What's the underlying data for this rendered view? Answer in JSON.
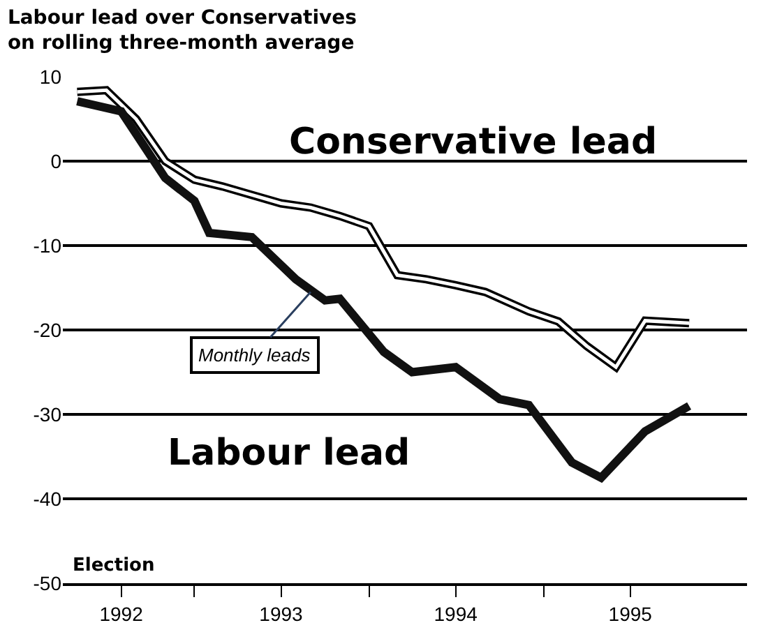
{
  "chart_data": {
    "type": "line",
    "title": "Labour lead over Conservatives\non rolling three-month average",
    "series": [
      {
        "color": "#ffffff",
        "x": [
          "1992-05",
          "1992-07",
          "1992-09",
          "1992-11",
          "1993-01",
          "1993-03",
          "1993-05",
          "1993-07",
          "1993-09",
          "1993-11",
          "1994-01",
          "1994-03",
          "1994-05",
          "1994-07",
          "1994-09",
          "1994-12",
          "1995-02",
          "1995-04",
          "1995-06",
          "1995-08",
          "1995-11"
        ],
        "values": [
          8.2,
          8.4,
          5,
          0,
          -2.2,
          -3,
          -4,
          -5,
          -5.5,
          -6.5,
          -7.7,
          -13.5,
          -14,
          -14.7,
          -15.5,
          -17.8,
          -19,
          -21.9,
          -24.4,
          -18.9,
          -19.2
        ]
      },
      {
        "color": "#111111",
        "x": [
          "1992-05",
          "1992-08",
          "1992-11",
          "1993-01",
          "1993-02",
          "1993-05",
          "1993-08",
          "1993-10",
          "1993-11",
          "1994-02",
          "1994-04",
          "1994-07",
          "1994-10",
          "1994-12",
          "1995-03",
          "1995-05",
          "1995-08",
          "1995-11"
        ],
        "values": [
          7.1,
          5.9,
          -2,
          -4.7,
          -8.5,
          -9,
          -14,
          -16.5,
          -16.3,
          -22.6,
          -25,
          -24.4,
          -28.2,
          -28.9,
          -35.7,
          -37.5,
          -32,
          -29
        ]
      }
    ],
    "xlim": [
      "1992-04-01",
      "1996-03-01"
    ],
    "xticks": [
      {
        "value": "1992-08-01",
        "label": "1992"
      },
      {
        "value": "1993-01-01",
        "label": null
      },
      {
        "value": "1993-07-01",
        "label": "1993"
      },
      {
        "value": "1994-01-01",
        "label": null
      },
      {
        "value": "1994-07-01",
        "label": "1994"
      },
      {
        "value": "1995-01-01",
        "label": null
      },
      {
        "value": "1995-07-01",
        "label": "1995"
      }
    ],
    "ylim": [
      -50,
      10
    ],
    "yticks": [
      10,
      0,
      -10,
      -20,
      -30,
      -40,
      -50
    ],
    "grid": "y",
    "line_style": "solid",
    "marker": "none",
    "annotations": [
      "Conservative lead",
      "Labour lead",
      "Election",
      {
        "text": "Monthly leads",
        "x": "1993-09",
        "y": -15.5
      }
    ]
  }
}
